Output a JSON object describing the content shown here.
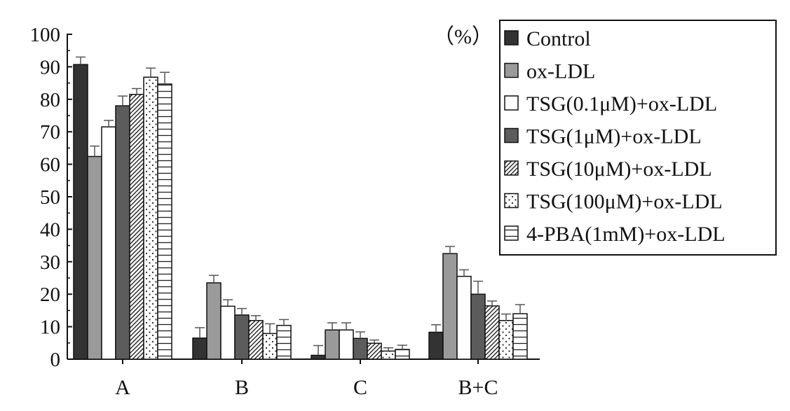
{
  "chart_data": {
    "type": "bar",
    "categories": [
      "A",
      "B",
      "C",
      "B+C"
    ],
    "unit_label": "（%）",
    "ylim": [
      0,
      100
    ],
    "yticks": [
      0,
      10,
      20,
      30,
      40,
      50,
      60,
      70,
      80,
      90,
      100
    ],
    "ytick_labels": [
      "0",
      "10",
      "20",
      "30",
      "40",
      "50",
      "60",
      "70",
      "80",
      "90",
      "100"
    ],
    "grid": false,
    "legend_position": "top-right",
    "series": [
      {
        "name": "Control",
        "pattern": "dark",
        "values": [
          90.7,
          6.5,
          1.2,
          8.3
        ],
        "errors": [
          2.3,
          3.2,
          3.0,
          2.3
        ]
      },
      {
        "name": "ox-LDL",
        "pattern": "gray",
        "values": [
          62.4,
          23.5,
          9.0,
          32.5
        ],
        "errors": [
          3.2,
          2.3,
          2.2,
          2.2
        ]
      },
      {
        "name": "TSG(0.1μM)+ox-LDL",
        "pattern": "white",
        "values": [
          71.5,
          16.3,
          9.0,
          25.5
        ],
        "errors": [
          2.0,
          2.0,
          2.2,
          2.0
        ]
      },
      {
        "name": "TSG(1μM)+ox-LDL",
        "pattern": "darkgray",
        "values": [
          78.0,
          13.6,
          6.4,
          20.0
        ],
        "errors": [
          3.0,
          2.0,
          2.0,
          4.0
        ]
      },
      {
        "name": "TSG(10μM)+ox-LDL",
        "pattern": "diagonal",
        "values": [
          81.5,
          11.9,
          4.9,
          16.4
        ],
        "errors": [
          1.8,
          1.5,
          1.0,
          1.5
        ]
      },
      {
        "name": "TSG(100μM)+ox-LDL",
        "pattern": "dots",
        "values": [
          86.8,
          7.9,
          2.5,
          11.9
        ],
        "errors": [
          2.8,
          3.0,
          1.0,
          2.0
        ]
      },
      {
        "name": "4-PBA(1mM)+ox-LDL",
        "pattern": "hlines",
        "values": [
          84.7,
          10.4,
          3.0,
          14.0
        ],
        "errors": [
          3.6,
          1.8,
          1.3,
          2.8
        ]
      }
    ]
  }
}
